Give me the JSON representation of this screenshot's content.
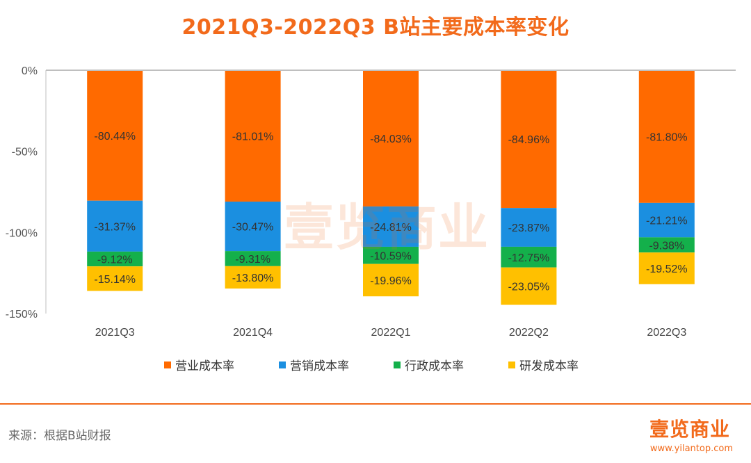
{
  "title": "2021Q3-2022Q3 B站主要成本率变化",
  "watermark": "壹览商业",
  "source": "来源：根据B站财报",
  "logo": {
    "name": "壹览商业",
    "url": "www.yilantop.com"
  },
  "chart_data": {
    "type": "bar",
    "stacked": true,
    "categories": [
      "2021Q3",
      "2021Q4",
      "2022Q1",
      "2022Q2",
      "2022Q3"
    ],
    "y_ticks": [
      "0%",
      "-50%",
      "-100%",
      "-150%"
    ],
    "y_tick_values": [
      0,
      -50,
      -100,
      -150
    ],
    "ylim": [
      -150,
      0
    ],
    "grid": false,
    "legend_position": "bottom",
    "series": [
      {
        "name": "营业成本率",
        "color": "#ff6a00",
        "values": [
          -80.44,
          -81.01,
          -84.03,
          -84.96,
          -81.8
        ],
        "labels": [
          "-80.44%",
          "-81.01%",
          "-84.03%",
          "-84.96%",
          "-81.80%"
        ]
      },
      {
        "name": "营销成本率",
        "color": "#1b8fe0",
        "values": [
          -31.37,
          -30.47,
          -24.81,
          -23.87,
          -21.21
        ],
        "labels": [
          "-31.37%",
          "-30.47%",
          "-24.81%",
          "-23.87%",
          "-21.21%"
        ]
      },
      {
        "name": "行政成本率",
        "color": "#14b04b",
        "values": [
          -9.12,
          -9.31,
          -10.59,
          -12.75,
          -9.38
        ],
        "labels": [
          "-9.12%",
          "-9.31%",
          "-10.59%",
          "-12.75%",
          "-9.38%"
        ]
      },
      {
        "name": "研发成本率",
        "color": "#ffc000",
        "values": [
          -15.14,
          -13.8,
          -19.96,
          -23.05,
          -19.52
        ],
        "labels": [
          "-15.14%",
          "-13.80%",
          "-19.96%",
          "-23.05%",
          "-19.52%"
        ]
      }
    ]
  }
}
